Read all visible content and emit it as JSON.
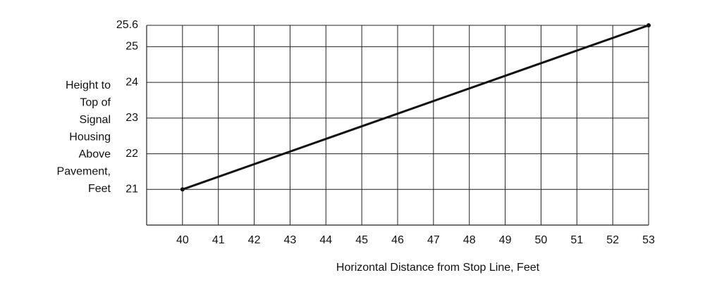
{
  "chart_data": {
    "type": "line",
    "xlabel": "Horizontal Distance from Stop Line, Feet",
    "ylabel": [
      "Height to",
      "Top of",
      "Signal",
      "Housing",
      "Above",
      "Pavement,",
      "Feet"
    ],
    "x": [
      40,
      53
    ],
    "series": [
      {
        "color": "#111111",
        "values": [
          21,
          25.6
        ]
      }
    ],
    "xlim": [
      39,
      53
    ],
    "xticks": [
      40,
      41,
      42,
      43,
      44,
      45,
      46,
      47,
      48,
      49,
      50,
      51,
      52,
      53
    ],
    "ylim": [
      20,
      25.6
    ],
    "yticks": [
      21,
      22,
      23,
      24,
      25,
      25.6
    ],
    "grid": true
  }
}
